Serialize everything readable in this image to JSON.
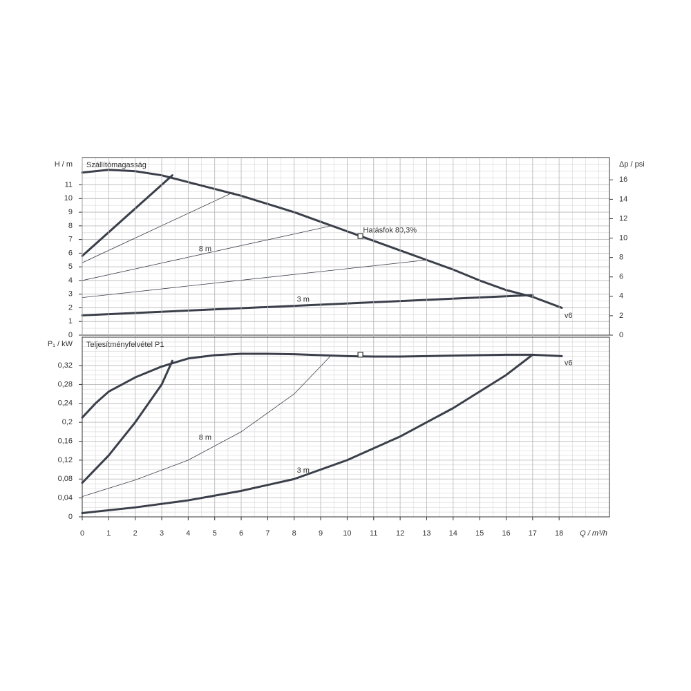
{
  "chart_data": [
    {
      "type": "line",
      "title": "Szállítómagasság",
      "y_label": "H / m",
      "y2_label": "Δp / psi",
      "xlim": [
        0,
        19.9
      ],
      "ylim": [
        0,
        13
      ],
      "yticks": [
        0,
        1,
        2,
        3,
        4,
        5,
        6,
        7,
        8,
        9,
        10,
        11
      ],
      "y2lim": [
        0,
        18.3
      ],
      "y2ticks": [
        0,
        2,
        4,
        6,
        8,
        10,
        12,
        14,
        16
      ],
      "grid": true,
      "series": [
        {
          "color": "#3a3f4a",
          "width": 3,
          "x": [
            0,
            1,
            2,
            3,
            4,
            5,
            6,
            7,
            8,
            9,
            10,
            11,
            12,
            13,
            14,
            15,
            16,
            17,
            18.1
          ],
          "values": [
            11.9,
            12.1,
            12.0,
            11.7,
            11.2,
            10.7,
            10.2,
            9.6,
            9.0,
            8.3,
            7.6,
            6.9,
            6.2,
            5.5,
            4.8,
            4.0,
            3.3,
            2.8,
            2.0
          ]
        },
        {
          "color": "#3a3f4a",
          "width": 3,
          "x": [
            0,
            3.4
          ],
          "values": [
            5.8,
            11.7
          ]
        },
        {
          "color": "#3a3f4a",
          "width": 0.8,
          "x": [
            0,
            5.7
          ],
          "values": [
            5.3,
            10.45
          ]
        },
        {
          "color": "#3a3f4a",
          "width": 0.8,
          "x": [
            0,
            9.4
          ],
          "values": [
            4.0,
            8.0
          ]
        },
        {
          "color": "#3a3f4a",
          "width": 0.8,
          "x": [
            0,
            13
          ],
          "values": [
            2.75,
            5.5
          ]
        },
        {
          "color": "#3a3f4a",
          "width": 3,
          "x": [
            0,
            17
          ],
          "values": [
            1.45,
            2.93
          ]
        }
      ],
      "markers": [
        {
          "x": 10.5,
          "y": 7.25
        }
      ],
      "annotations": [
        {
          "text": "Hatásfok  80,3%",
          "x": 10.6,
          "y": 7.65
        },
        {
          "text": "8 m",
          "x": 4.4,
          "y": 6.3
        },
        {
          "text": "3 m",
          "x": 8.1,
          "y": 2.6
        },
        {
          "text": "v6",
          "x": 18.2,
          "y": 1.4
        }
      ]
    },
    {
      "type": "line",
      "title": "Teljesítményfelvétel P1",
      "y_label": "P₁ / kW",
      "x_label": "Q / m³/h",
      "xlim": [
        0,
        19.9
      ],
      "xticks": [
        0,
        1,
        2,
        3,
        4,
        5,
        6,
        7,
        8,
        9,
        10,
        11,
        12,
        13,
        14,
        15,
        16,
        17,
        18
      ],
      "ylim": [
        0,
        0.38
      ],
      "yticks": [
        0,
        {
          "value": 0.04,
          "label": "0,04"
        },
        {
          "value": 0.08,
          "label": "0,08"
        },
        {
          "value": 0.12,
          "label": "0,12"
        },
        {
          "value": 0.16,
          "label": "0,16"
        },
        {
          "value": 0.2,
          "label": "0,2"
        },
        {
          "value": 0.24,
          "label": "0,24"
        },
        {
          "value": 0.28,
          "label": "0,28"
        },
        {
          "value": 0.32,
          "label": "0,32"
        }
      ],
      "grid": true,
      "series": [
        {
          "color": "#3a3f4a",
          "width": 3,
          "x": [
            0,
            0.5,
            1,
            2,
            3,
            4,
            5,
            6,
            7,
            8,
            9,
            10,
            11,
            12,
            13,
            14,
            15,
            16,
            17,
            18.1
          ],
          "values": [
            0.21,
            0.24,
            0.265,
            0.295,
            0.318,
            0.335,
            0.342,
            0.345,
            0.345,
            0.344,
            0.342,
            0.34,
            0.339,
            0.339,
            0.34,
            0.341,
            0.342,
            0.343,
            0.343,
            0.34
          ]
        },
        {
          "color": "#3a3f4a",
          "width": 3,
          "x": [
            0,
            1,
            2,
            3,
            3.4
          ],
          "values": [
            0.072,
            0.13,
            0.2,
            0.28,
            0.33
          ]
        },
        {
          "color": "#3a3f4a",
          "width": 0.8,
          "x": [
            0,
            2,
            4,
            6,
            8,
            9.4
          ],
          "values": [
            0.043,
            0.078,
            0.12,
            0.18,
            0.26,
            0.342
          ]
        },
        {
          "color": "#3a3f4a",
          "width": 3,
          "x": [
            0,
            2,
            4,
            6,
            8,
            10,
            12,
            14,
            16,
            17
          ],
          "values": [
            0.008,
            0.02,
            0.035,
            0.055,
            0.08,
            0.12,
            0.17,
            0.23,
            0.3,
            0.343
          ]
        }
      ],
      "markers": [
        {
          "x": 10.5,
          "y": 0.343
        }
      ],
      "annotations": [
        {
          "text": "8 m",
          "x": 4.4,
          "y": 0.167
        },
        {
          "text": "3 m",
          "x": 8.1,
          "y": 0.098
        },
        {
          "text": "v6",
          "x": 18.2,
          "y": 0.325
        }
      ]
    }
  ]
}
